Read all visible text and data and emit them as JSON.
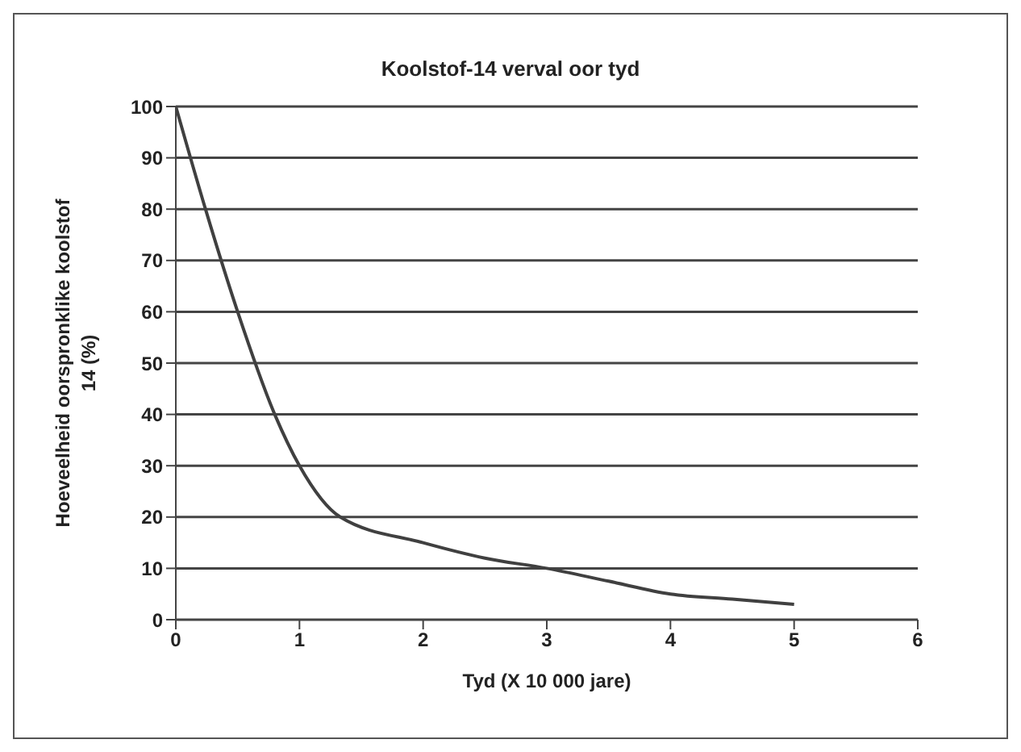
{
  "chart_data": {
    "type": "line",
    "title": "Koolstof-14 verval oor tyd",
    "xlabel": "Tyd (X 10 000 jare)",
    "ylabel": "Hoeveelheid oorspronklike koolstof 14 (%)",
    "x": [
      0,
      0.24,
      0.5,
      0.8,
      1,
      1.33,
      2,
      2.5,
      3,
      3.5,
      4,
      4.5,
      5
    ],
    "series": [
      {
        "color": "#404040",
        "values": [
          100,
          80,
          60,
          40,
          30,
          20,
          15,
          12,
          10,
          7.5,
          5,
          4,
          3
        ]
      }
    ],
    "xlim": [
      0,
      6
    ],
    "xticks": [
      0,
      1,
      2,
      3,
      4,
      5,
      6
    ],
    "ylim": [
      0,
      100
    ],
    "yticks": [
      0,
      10,
      20,
      30,
      40,
      50,
      60,
      70,
      80,
      90,
      100
    ],
    "grid": "y",
    "legend": false,
    "marker": "none",
    "line_style": "solid"
  }
}
